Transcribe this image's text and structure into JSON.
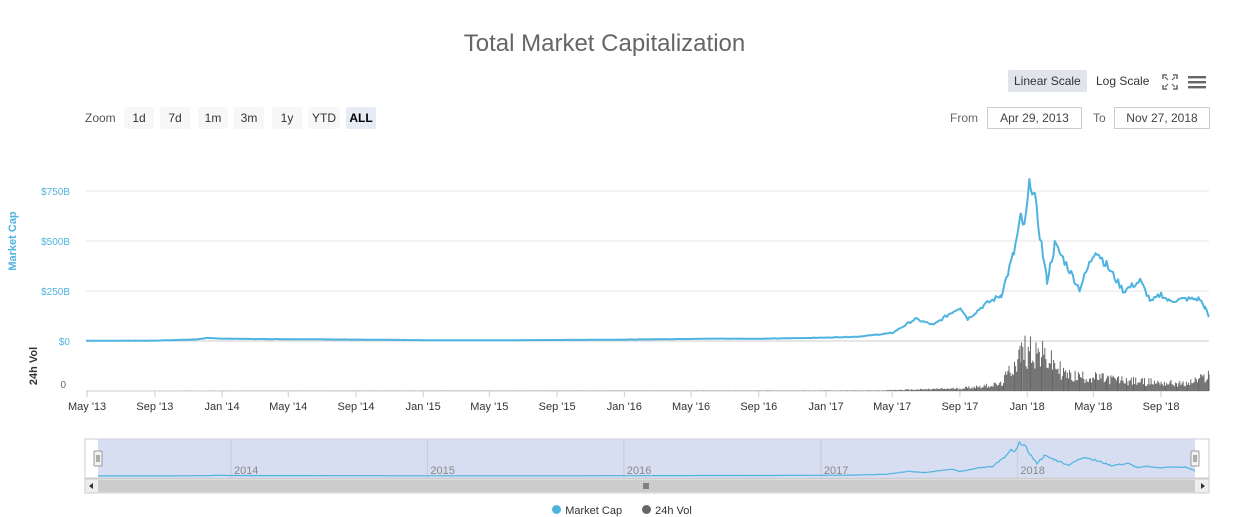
{
  "title": "Total Market Capitalization",
  "scale_buttons": {
    "linear": "Linear Scale",
    "log": "Log Scale",
    "active": "linear"
  },
  "icons": {
    "fullscreen": "fullscreen-icon",
    "menu": "menu-icon"
  },
  "zoom": {
    "label": "Zoom",
    "buttons": [
      "1d",
      "7d",
      "1m",
      "3m",
      "1y",
      "YTD",
      "ALL"
    ],
    "active": "ALL"
  },
  "range": {
    "from_label": "From",
    "from_value": "Apr 29, 2013",
    "to_label": "To",
    "to_value": "Nov 27, 2018"
  },
  "legend": {
    "items": [
      "Market Cap",
      "24h Vol"
    ]
  },
  "colors": {
    "market_cap": "#4fb3e0",
    "volume": "#666666",
    "navigator_fill": "#d0d8ee"
  },
  "chart_data": {
    "type": "line",
    "x_range": [
      "2013-04-29",
      "2018-11-27"
    ],
    "x_ticks": [
      "May '13",
      "Sep '13",
      "Jan '14",
      "May '14",
      "Sep '14",
      "Jan '15",
      "May '15",
      "Sep '15",
      "Jan '16",
      "May '16",
      "Sep '16",
      "Jan '17",
      "May '17",
      "Sep '17",
      "Jan '18",
      "May '18",
      "Sep '18"
    ],
    "y_axis": {
      "label": "Market Cap",
      "ticks": [
        "$0",
        "$250B",
        "$500B",
        "$750B"
      ],
      "range_billions": [
        0,
        875
      ]
    },
    "vol_axis": {
      "label": "24h Vol",
      "ticks": [
        "0"
      ]
    },
    "navigator_years": [
      "2014",
      "2015",
      "2016",
      "2017",
      "2018"
    ],
    "series": [
      {
        "name": "Market Cap",
        "unit": "billions USD",
        "points": [
          [
            "2013-04-29",
            1.6
          ],
          [
            "2013-09-01",
            1.8
          ],
          [
            "2013-11-15",
            8
          ],
          [
            "2013-12-04",
            15
          ],
          [
            "2014-01-01",
            12
          ],
          [
            "2014-03-01",
            10
          ],
          [
            "2014-06-01",
            9
          ],
          [
            "2014-09-01",
            7
          ],
          [
            "2015-01-15",
            4
          ],
          [
            "2015-06-01",
            4
          ],
          [
            "2015-11-05",
            6
          ],
          [
            "2016-01-01",
            7
          ],
          [
            "2016-06-15",
            12
          ],
          [
            "2016-09-01",
            11
          ],
          [
            "2017-01-01",
            17
          ],
          [
            "2017-03-01",
            22
          ],
          [
            "2017-05-01",
            40
          ],
          [
            "2017-06-12",
            110
          ],
          [
            "2017-07-15",
            80
          ],
          [
            "2017-08-15",
            140
          ],
          [
            "2017-09-02",
            170
          ],
          [
            "2017-09-15",
            110
          ],
          [
            "2017-10-15",
            180
          ],
          [
            "2017-11-15",
            230
          ],
          [
            "2017-12-08",
            440
          ],
          [
            "2017-12-21",
            620
          ],
          [
            "2017-12-27",
            560
          ],
          [
            "2018-01-07",
            812
          ],
          [
            "2018-01-15",
            700
          ],
          [
            "2018-02-06",
            300
          ],
          [
            "2018-02-20",
            480
          ],
          [
            "2018-03-10",
            400
          ],
          [
            "2018-04-06",
            260
          ],
          [
            "2018-05-05",
            460
          ],
          [
            "2018-05-25",
            380
          ],
          [
            "2018-06-25",
            250
          ],
          [
            "2018-07-25",
            300
          ],
          [
            "2018-08-14",
            195
          ],
          [
            "2018-09-01",
            235
          ],
          [
            "2018-09-15",
            200
          ],
          [
            "2018-10-15",
            210
          ],
          [
            "2018-11-10",
            210
          ],
          [
            "2018-11-20",
            165
          ],
          [
            "2018-11-27",
            120
          ]
        ]
      },
      {
        "name": "24h Vol",
        "unit": "billions USD",
        "points": [
          [
            "2013-04-29",
            0
          ],
          [
            "2017-04-01",
            0.5
          ],
          [
            "2017-06-01",
            1.5
          ],
          [
            "2017-09-01",
            3
          ],
          [
            "2017-11-15",
            8
          ],
          [
            "2017-12-22",
            45
          ],
          [
            "2018-01-07",
            50
          ],
          [
            "2018-02-06",
            38
          ],
          [
            "2018-03-15",
            18
          ],
          [
            "2018-05-01",
            16
          ],
          [
            "2018-07-01",
            12
          ],
          [
            "2018-09-01",
            10
          ],
          [
            "2018-10-15",
            8
          ],
          [
            "2018-11-20",
            16
          ],
          [
            "2018-11-27",
            20
          ]
        ]
      }
    ]
  }
}
